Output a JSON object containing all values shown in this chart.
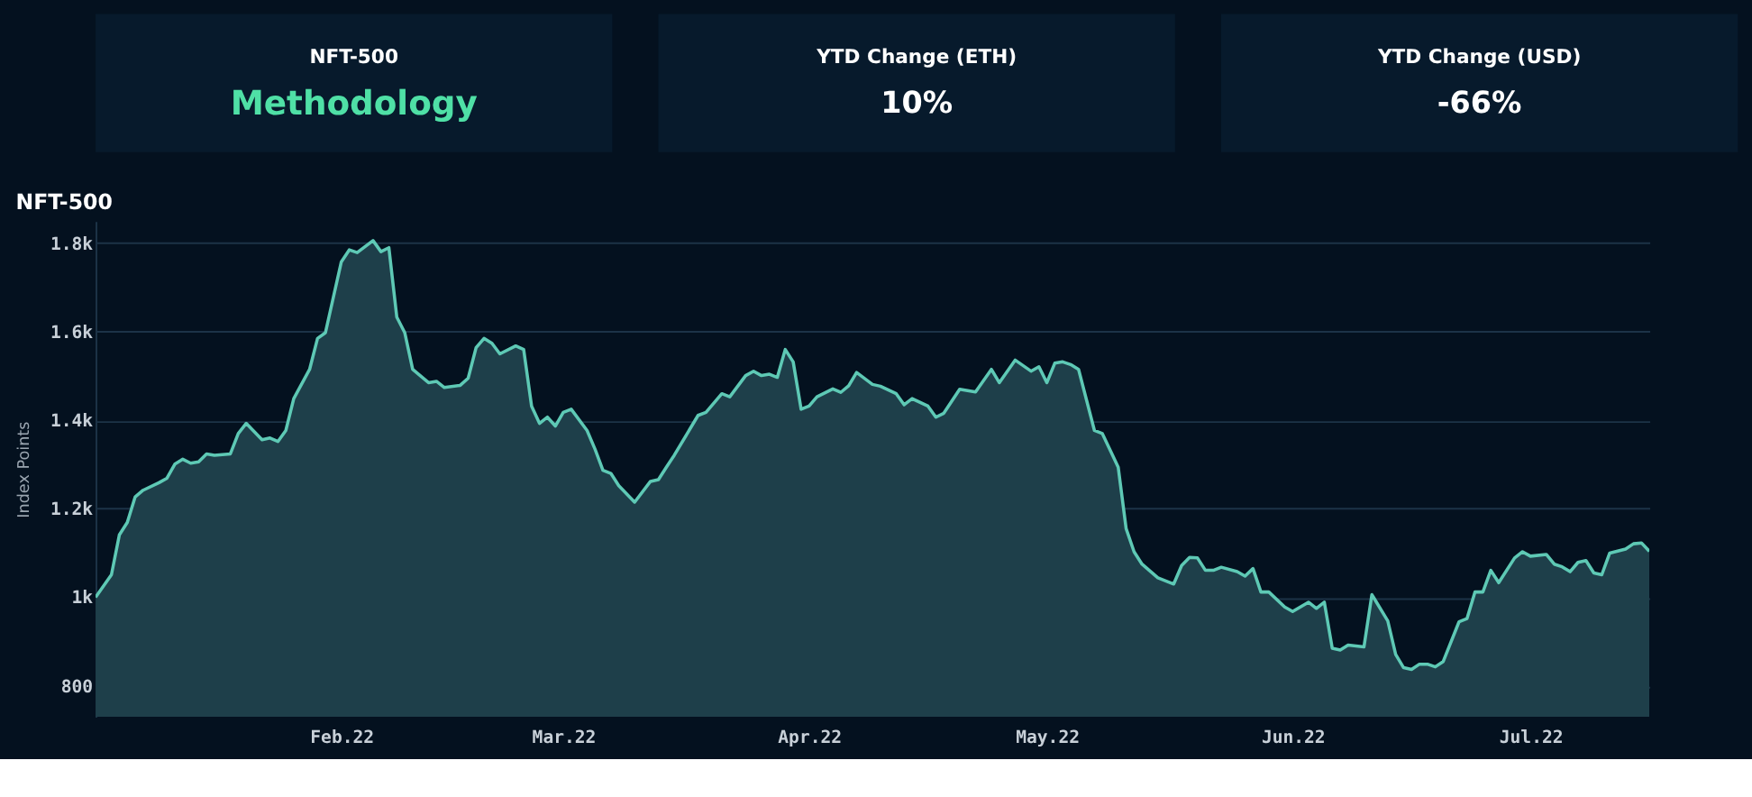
{
  "chart_data": [
    {
      "type": "other",
      "title": "NFT-500",
      "annotations": [
        "Methodology"
      ]
    },
    {
      "type": "other",
      "title": "YTD Change (ETH)",
      "annotations": [
        "10%"
      ]
    },
    {
      "type": "other",
      "title": "YTD Change (USD)",
      "annotations": [
        "-66%"
      ]
    },
    {
      "type": "area",
      "title": "NFT-500",
      "ylabel": "Index Points",
      "color": "#5ec9b5",
      "x": [
        "2022-01-01",
        "2022-01-03",
        "2022-01-04",
        "2022-01-05",
        "2022-01-06",
        "2022-01-07",
        "2022-01-09",
        "2022-01-10",
        "2022-01-11",
        "2022-01-12",
        "2022-01-13",
        "2022-01-14",
        "2022-01-15",
        "2022-01-16",
        "2022-01-18",
        "2022-01-19",
        "2022-01-20",
        "2022-01-22",
        "2022-01-23",
        "2022-01-24",
        "2022-01-25",
        "2022-01-26",
        "2022-01-28",
        "2022-01-29",
        "2022-01-30",
        "2022-02-01",
        "2022-02-02",
        "2022-02-03",
        "2022-02-05",
        "2022-02-06",
        "2022-02-07",
        "2022-02-08",
        "2022-02-09",
        "2022-02-10",
        "2022-02-12",
        "2022-02-13",
        "2022-02-14",
        "2022-02-16",
        "2022-02-17",
        "2022-02-18",
        "2022-02-19",
        "2022-02-20",
        "2022-02-21",
        "2022-02-23",
        "2022-02-24",
        "2022-02-25",
        "2022-02-26",
        "2022-02-27",
        "2022-02-28",
        "2022-03-01",
        "2022-03-02",
        "2022-03-04",
        "2022-03-05",
        "2022-03-06",
        "2022-03-07",
        "2022-03-08",
        "2022-03-10",
        "2022-03-12",
        "2022-03-13",
        "2022-03-14",
        "2022-03-15",
        "2022-03-18",
        "2022-03-19",
        "2022-03-21",
        "2022-03-22",
        "2022-03-24",
        "2022-03-25",
        "2022-03-26",
        "2022-03-27",
        "2022-03-28",
        "2022-03-29",
        "2022-03-30",
        "2022-03-31",
        "2022-04-01",
        "2022-04-02",
        "2022-04-04",
        "2022-04-05",
        "2022-04-06",
        "2022-04-07",
        "2022-04-09",
        "2022-04-10",
        "2022-04-12",
        "2022-04-13",
        "2022-04-14",
        "2022-04-16",
        "2022-04-17",
        "2022-04-18",
        "2022-04-20",
        "2022-04-22",
        "2022-04-24",
        "2022-04-25",
        "2022-04-27",
        "2022-04-29",
        "2022-04-30",
        "2022-05-01",
        "2022-05-02",
        "2022-05-03",
        "2022-05-04",
        "2022-05-05",
        "2022-05-07",
        "2022-05-08",
        "2022-05-10",
        "2022-05-11",
        "2022-05-12",
        "2022-05-13",
        "2022-05-15",
        "2022-05-17",
        "2022-05-18",
        "2022-05-19",
        "2022-05-20",
        "2022-05-21",
        "2022-05-22",
        "2022-05-23",
        "2022-05-25",
        "2022-05-26",
        "2022-05-27",
        "2022-05-28",
        "2022-05-29",
        "2022-05-31",
        "2022-06-01",
        "2022-06-03",
        "2022-06-04",
        "2022-06-05",
        "2022-06-06",
        "2022-06-07",
        "2022-06-08",
        "2022-06-10",
        "2022-06-11",
        "2022-06-13",
        "2022-06-14",
        "2022-06-15",
        "2022-06-16",
        "2022-06-17",
        "2022-06-18",
        "2022-06-19",
        "2022-06-20",
        "2022-06-22",
        "2022-06-23",
        "2022-06-24",
        "2022-06-25",
        "2022-06-26",
        "2022-06-27",
        "2022-06-29",
        "2022-06-30",
        "2022-07-01",
        "2022-07-03",
        "2022-07-04",
        "2022-07-05",
        "2022-07-06",
        "2022-07-07",
        "2022-07-08",
        "2022-07-09",
        "2022-07-10",
        "2022-07-11",
        "2022-07-13",
        "2022-07-14",
        "2022-07-15",
        "2022-07-16"
      ],
      "values": [
        1000,
        1051,
        1141,
        1169,
        1227,
        1242,
        1259,
        1269,
        1301,
        1312,
        1303,
        1306,
        1324,
        1321,
        1324,
        1370,
        1393,
        1356,
        1360,
        1352,
        1377,
        1449,
        1515,
        1585,
        1598,
        1758,
        1785,
        1779,
        1806,
        1781,
        1790,
        1633,
        1598,
        1515,
        1485,
        1488,
        1474,
        1479,
        1495,
        1564,
        1585,
        1574,
        1550,
        1568,
        1560,
        1432,
        1393,
        1407,
        1387,
        1418,
        1425,
        1377,
        1335,
        1287,
        1280,
        1252,
        1215,
        1262,
        1266,
        1294,
        1321,
        1411,
        1418,
        1460,
        1453,
        1501,
        1511,
        1501,
        1504,
        1497,
        1560,
        1532,
        1425,
        1432,
        1453,
        1471,
        1463,
        1478,
        1508,
        1481,
        1477,
        1460,
        1435,
        1449,
        1432,
        1407,
        1416,
        1470,
        1464,
        1515,
        1485,
        1536,
        1511,
        1521,
        1485,
        1529,
        1532,
        1526,
        1515,
        1377,
        1370,
        1294,
        1155,
        1103,
        1075,
        1044,
        1030,
        1072,
        1090,
        1089,
        1061,
        1061,
        1068,
        1058,
        1048,
        1065,
        1012,
        1012,
        978,
        968,
        989,
        975,
        989,
        885,
        881,
        892,
        888,
        1006,
        947,
        871,
        841,
        837,
        849,
        849,
        843,
        855,
        945,
        952,
        1012,
        1012,
        1061,
        1033,
        1089,
        1103,
        1093,
        1097,
        1075,
        1069,
        1058,
        1079,
        1083,
        1055,
        1051,
        1100,
        1109,
        1121,
        1123,
        1104
      ],
      "xlim": [
        "2022-01-01",
        "2022-07-16"
      ],
      "xticks": [
        {
          "value": "2022-02-01",
          "label": "Feb.22"
        },
        {
          "value": "2022-03-01",
          "label": "Mar.22"
        },
        {
          "value": "2022-04-01",
          "label": "Apr.22"
        },
        {
          "value": "2022-05-01",
          "label": "May.22"
        },
        {
          "value": "2022-06-01",
          "label": "Jun.22"
        },
        {
          "value": "2022-07-01",
          "label": "Jul.22"
        }
      ],
      "ylim": [
        730,
        1850
      ],
      "yticks": [
        800,
        {
          "value": 1000,
          "label": "1k"
        },
        {
          "value": 1200,
          "label": "1.2k"
        },
        {
          "value": 1400,
          "label": "1.4k"
        },
        {
          "value": 1600,
          "label": "1.6k"
        },
        {
          "value": 1800,
          "label": "1.8k"
        }
      ],
      "grid": "y"
    }
  ]
}
